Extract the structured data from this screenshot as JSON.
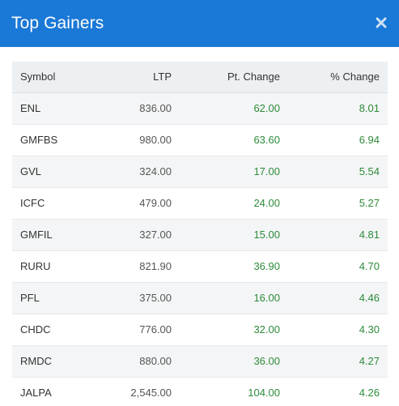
{
  "modal": {
    "title": "Top Gainers",
    "close_icon": "close-icon",
    "header_color": "#1a78d6"
  },
  "table": {
    "headers": {
      "symbol": "Symbol",
      "ltp": "LTP",
      "pt_change": "Pt. Change",
      "pct_change": "% Change"
    },
    "rows": [
      {
        "symbol": "ENL",
        "ltp": "836.00",
        "pt_change": "62.00",
        "pct_change": "8.01"
      },
      {
        "symbol": "GMFBS",
        "ltp": "980.00",
        "pt_change": "63.60",
        "pct_change": "6.94"
      },
      {
        "symbol": "GVL",
        "ltp": "324.00",
        "pt_change": "17.00",
        "pct_change": "5.54"
      },
      {
        "symbol": "ICFC",
        "ltp": "479.00",
        "pt_change": "24.00",
        "pct_change": "5.27"
      },
      {
        "symbol": "GMFIL",
        "ltp": "327.00",
        "pt_change": "15.00",
        "pct_change": "4.81"
      },
      {
        "symbol": "RURU",
        "ltp": "821.90",
        "pt_change": "36.90",
        "pct_change": "4.70"
      },
      {
        "symbol": "PFL",
        "ltp": "375.00",
        "pt_change": "16.00",
        "pct_change": "4.46"
      },
      {
        "symbol": "CHDC",
        "ltp": "776.00",
        "pt_change": "32.00",
        "pct_change": "4.30"
      },
      {
        "symbol": "RMDC",
        "ltp": "880.00",
        "pt_change": "36.00",
        "pct_change": "4.27"
      },
      {
        "symbol": "JALPA",
        "ltp": "2,545.00",
        "pt_change": "104.00",
        "pct_change": "4.26"
      }
    ],
    "gain_color": "#2e8b3a"
  }
}
